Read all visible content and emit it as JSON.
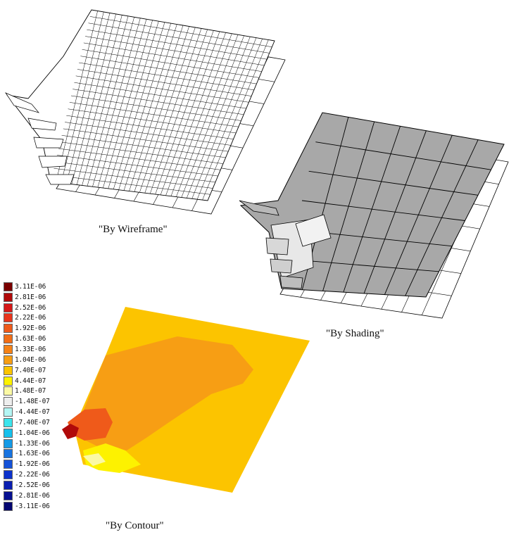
{
  "captions": {
    "wireframe": "\"By Wireframe\"",
    "shading": "\"By Shading\"",
    "contour": "\"By Contour\""
  },
  "legend": [
    {
      "label": "3.11E-06",
      "color": "#7a0000"
    },
    {
      "label": "2.81E-06",
      "color": "#b00a0a"
    },
    {
      "label": "2.52E-06",
      "color": "#d61818"
    },
    {
      "label": "2.22E-06",
      "color": "#e8341c"
    },
    {
      "label": "1.92E-06",
      "color": "#ef5a1a"
    },
    {
      "label": "1.63E-06",
      "color": "#f26d16"
    },
    {
      "label": "1.33E-06",
      "color": "#f58217"
    },
    {
      "label": "1.04E-06",
      "color": "#f79e14"
    },
    {
      "label": "7.40E-07",
      "color": "#fcc400"
    },
    {
      "label": "4.44E-07",
      "color": "#fdf200"
    },
    {
      "label": "1.48E-07",
      "color": "#fbf9a4"
    },
    {
      "label": "-1.48E-07",
      "color": "#eeeeee"
    },
    {
      "label": "-4.44E-07",
      "color": "#b4f6f4"
    },
    {
      "label": "-7.40E-07",
      "color": "#3be4ec"
    },
    {
      "label": "-1.04E-06",
      "color": "#16c0ec"
    },
    {
      "label": "-1.33E-06",
      "color": "#149ae6"
    },
    {
      "label": "-1.63E-06",
      "color": "#1874e0"
    },
    {
      "label": "-1.92E-06",
      "color": "#1452d8"
    },
    {
      "label": "-2.22E-06",
      "color": "#0c32cc"
    },
    {
      "label": "-2.52E-06",
      "color": "#0a1eb0"
    },
    {
      "label": "-2.81E-06",
      "color": "#061090"
    },
    {
      "label": "-3.11E-06",
      "color": "#040670"
    }
  ],
  "colors": {
    "contour_base": "#fcc400",
    "contour_zone": "#f79e14",
    "contour_hot": "#ef5a1a",
    "contour_peak": "#b00a0a",
    "shade_fill": "#a8a8a8"
  }
}
